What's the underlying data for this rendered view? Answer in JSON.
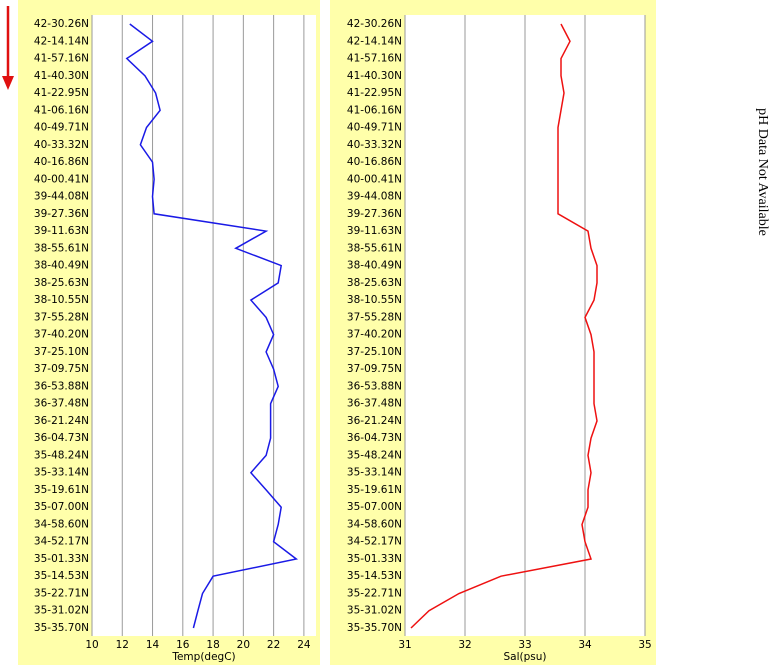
{
  "chart_data": [
    {
      "type": "line",
      "categories": [
        "42-30.26N",
        "42-14.14N",
        "41-57.16N",
        "41-40.30N",
        "41-22.95N",
        "41-06.16N",
        "40-49.71N",
        "40-33.32N",
        "40-16.86N",
        "40-00.41N",
        "39-44.08N",
        "39-27.36N",
        "39-11.63N",
        "38-55.61N",
        "38-40.49N",
        "38-25.63N",
        "38-10.55N",
        "37-55.28N",
        "37-40.20N",
        "37-25.10N",
        "37-09.75N",
        "36-53.88N",
        "36-37.48N",
        "36-21.24N",
        "36-04.73N",
        "35-48.24N",
        "35-33.14N",
        "35-19.61N",
        "35-07.00N",
        "34-58.60N",
        "34-52.17N",
        "35-01.33N",
        "35-14.53N",
        "35-22.71N",
        "35-31.02N",
        "35-35.70N"
      ],
      "values": [
        12.5,
        14,
        12.3,
        13.5,
        14.2,
        14.5,
        13.6,
        13.2,
        14,
        14.1,
        14,
        14.1,
        21.5,
        19.5,
        22.5,
        22.3,
        20.5,
        21.5,
        22,
        21.5,
        22,
        22.3,
        21.8,
        21.8,
        21.8,
        21.5,
        20.5,
        21.5,
        22.5,
        22.3,
        22,
        23.5,
        18,
        17.3,
        17,
        16.7
      ],
      "color": "#1a1ae6",
      "x_label": "Temp(degC)",
      "xlim": [
        10,
        24.8
      ],
      "xticks": [
        10,
        12,
        14,
        16,
        18,
        20,
        22,
        24
      ],
      "grid": true
    },
    {
      "type": "line",
      "categories": [
        "42-30.26N",
        "42-14.14N",
        "41-57.16N",
        "41-40.30N",
        "41-22.95N",
        "41-06.16N",
        "40-49.71N",
        "40-33.32N",
        "40-16.86N",
        "40-00.41N",
        "39-44.08N",
        "39-27.36N",
        "39-11.63N",
        "38-55.61N",
        "38-40.49N",
        "38-25.63N",
        "38-10.55N",
        "37-55.28N",
        "37-40.20N",
        "37-25.10N",
        "37-09.75N",
        "36-53.88N",
        "36-37.48N",
        "36-21.24N",
        "36-04.73N",
        "35-48.24N",
        "35-33.14N",
        "35-19.61N",
        "35-07.00N",
        "34-58.60N",
        "34-52.17N",
        "35-01.33N",
        "35-14.53N",
        "35-22.71N",
        "35-31.02N",
        "35-35.70N"
      ],
      "values": [
        33.6,
        33.75,
        33.6,
        33.6,
        33.65,
        33.6,
        33.55,
        33.55,
        33.55,
        33.55,
        33.55,
        33.55,
        34.05,
        34.1,
        34.2,
        34.2,
        34.15,
        34,
        34.1,
        34.15,
        34.15,
        34.15,
        34.15,
        34.2,
        34.1,
        34.05,
        34.1,
        34.05,
        34.05,
        33.95,
        34,
        34.1,
        32.6,
        31.9,
        31.4,
        31.1
      ],
      "color": "#ee1111",
      "x_label": "Sal(psu)",
      "xlim": [
        31,
        35
      ],
      "xticks": [
        31,
        32,
        33,
        34,
        35
      ],
      "grid": true
    }
  ],
  "annotation": "pH Data Not Available"
}
